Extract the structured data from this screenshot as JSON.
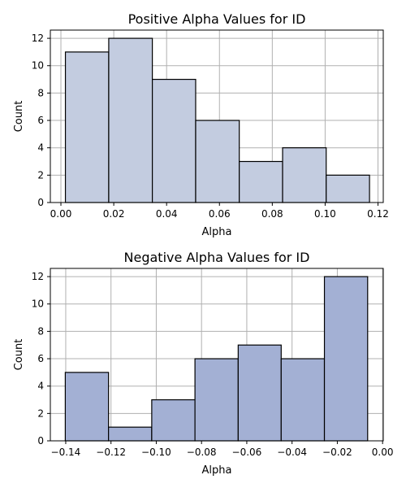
{
  "chart_data": [
    {
      "type": "bar",
      "title": "Positive Alpha Values for ID",
      "xlabel": "Alpha",
      "ylabel": "Count",
      "bin_edges": [
        0.0017,
        0.0181,
        0.0346,
        0.051,
        0.0675,
        0.0839,
        0.1004,
        0.1168
      ],
      "values": [
        11,
        12,
        9,
        6,
        3,
        4,
        2
      ],
      "xlim": [
        -0.004,
        0.122
      ],
      "ylim": [
        0,
        12.6
      ],
      "xticks": [
        0.0,
        0.02,
        0.04,
        0.06,
        0.08,
        0.1,
        0.12
      ],
      "xtick_labels": [
        "0.00",
        "0.02",
        "0.04",
        "0.06",
        "0.08",
        "0.10",
        "0.12"
      ],
      "yticks": [
        0,
        2,
        4,
        6,
        8,
        10,
        12
      ],
      "ytick_labels": [
        "0",
        "2",
        "4",
        "6",
        "8",
        "10",
        "12"
      ],
      "grid": true,
      "bar_color": "#c3cce0"
    },
    {
      "type": "bar",
      "title": "Negative Alpha Values for ID",
      "xlabel": "Alpha",
      "ylabel": "Count",
      "bin_edges": [
        -0.1402,
        -0.1211,
        -0.102,
        -0.0829,
        -0.0638,
        -0.0448,
        -0.0257,
        -0.0066
      ],
      "values": [
        5,
        1,
        3,
        6,
        7,
        6,
        12
      ],
      "xlim": [
        -0.1468,
        0.0003
      ],
      "ylim": [
        0,
        12.6
      ],
      "xticks": [
        -0.14,
        -0.12,
        -0.1,
        -0.08,
        -0.06,
        -0.04,
        -0.02,
        0.0
      ],
      "xtick_labels": [
        "−0.14",
        "−0.12",
        "−0.10",
        "−0.08",
        "−0.06",
        "−0.04",
        "−0.02",
        "0.00"
      ],
      "yticks": [
        0,
        2,
        4,
        6,
        8,
        10,
        12
      ],
      "ytick_labels": [
        "0",
        "2",
        "4",
        "6",
        "8",
        "10",
        "12"
      ],
      "grid": true,
      "bar_color": "#a3b0d4"
    }
  ]
}
